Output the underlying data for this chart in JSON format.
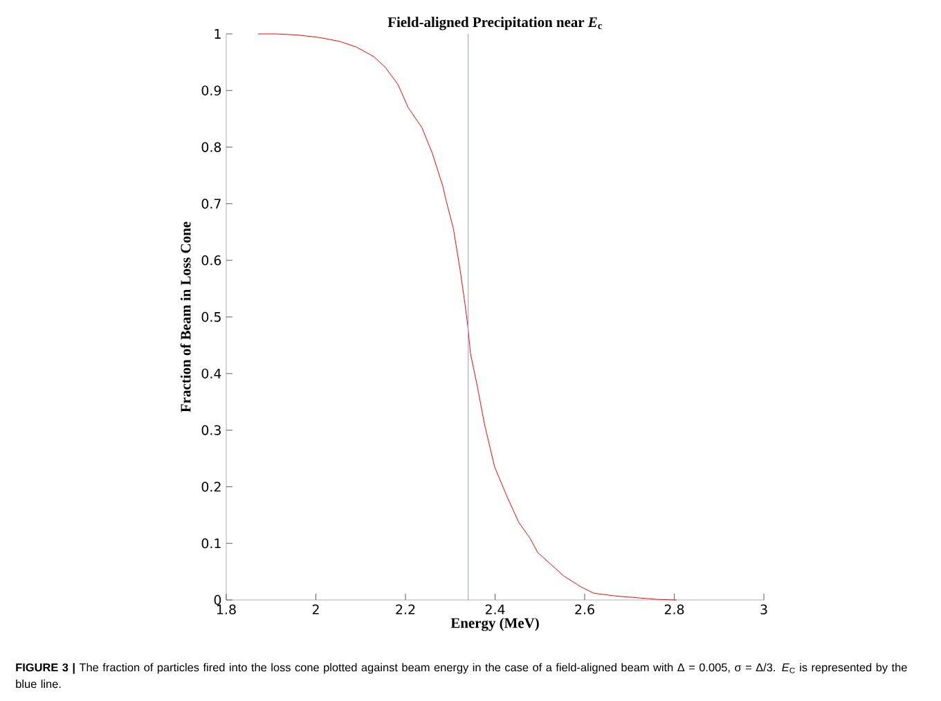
{
  "chart_data": {
    "type": "line",
    "title": "Field-aligned Precipitation near *E*$_{c}$",
    "xlabel": "Energy (MeV)",
    "ylabel": "Fraction of Beam in Loss Cone",
    "annotations": [
      "**FIGURE 3 |** The fraction of particles fired into the loss cone plotted against beam energy in the case of a field-aligned beam with Δ = 0.005, σ = Δ/3. *E*$_{C}$ is represented by the blue line."
    ],
    "x": [
      1.871,
      1.913,
      1.959,
      2.005,
      2.052,
      2.09,
      2.129,
      2.155,
      2.183,
      2.206,
      2.237,
      2.26,
      2.283,
      2.291,
      2.307,
      2.322,
      2.333,
      2.339,
      2.345,
      2.361,
      2.376,
      2.399,
      2.427,
      2.453,
      2.478,
      2.495,
      2.523,
      2.554,
      2.592,
      2.62,
      2.669,
      2.716,
      2.762,
      2.805
    ],
    "series": [
      {
        "color": "#ff0000",
        "values": [
          1.0,
          1.0,
          0.998,
          0.994,
          0.987,
          0.977,
          0.96,
          0.941,
          0.911,
          0.87,
          0.834,
          0.789,
          0.732,
          0.705,
          0.656,
          0.583,
          0.522,
          0.485,
          0.436,
          0.375,
          0.312,
          0.235,
          0.182,
          0.137,
          0.109,
          0.084,
          0.064,
          0.042,
          0.023,
          0.012,
          0.007,
          0.004,
          0.001,
          0.0
        ]
      }
    ],
    "xlim": [
      1.8,
      3
    ],
    "ylim": [
      0,
      1
    ],
    "xticks": [
      1.8,
      2,
      2.2,
      2.4,
      2.6,
      2.8,
      3
    ],
    "yticks": [
      0,
      0.1,
      0.2,
      0.3,
      0.4,
      0.5,
      0.6,
      0.7,
      0.8,
      0.9,
      1
    ],
    "ref_lines": [
      {
        "axis": "x",
        "value": 2.34,
        "color": "#9999dd"
      }
    ],
    "grid": false,
    "marker": "none",
    "line_style": "solid"
  }
}
